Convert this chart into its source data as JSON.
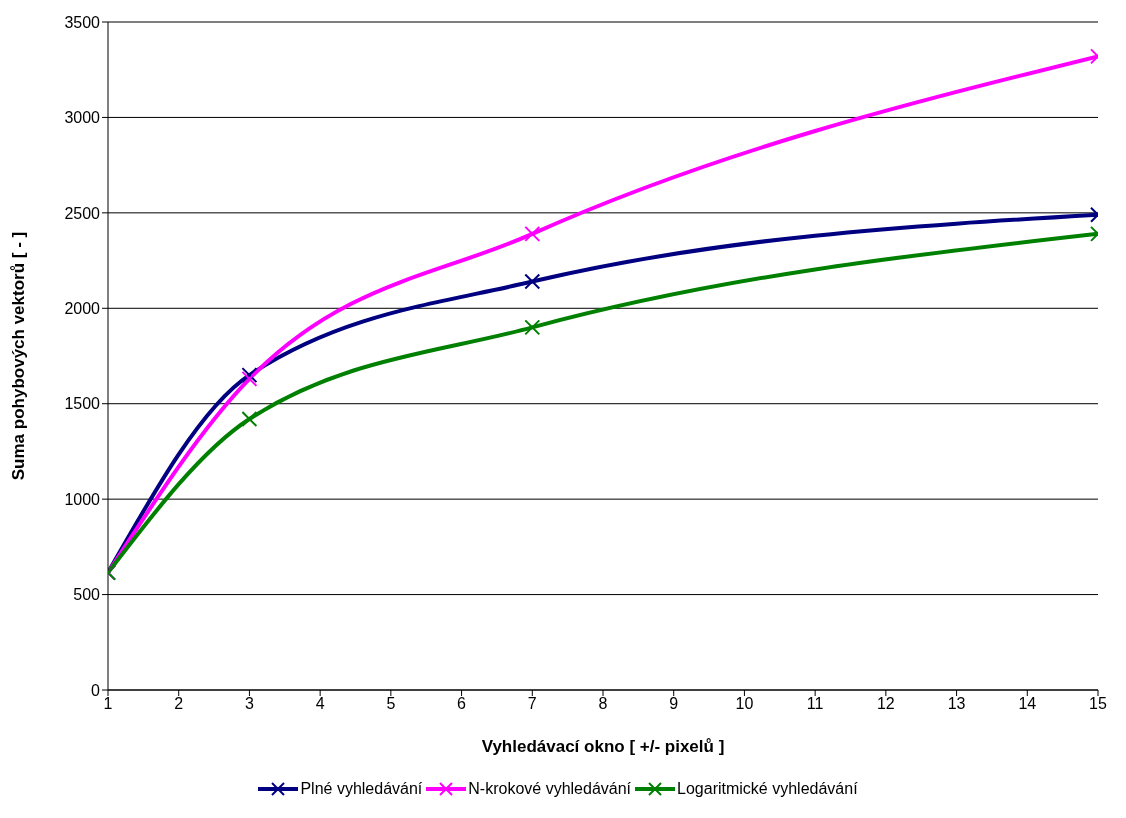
{
  "chart_data": {
    "type": "line",
    "xlabel": "Vyhledávací okno [ +/- pixelů ]",
    "ylabel": "Suma pohybových vektorů [ - ]",
    "x": [
      1,
      3,
      7,
      15
    ],
    "series": [
      {
        "name": "Plné vyhledávání",
        "color": "#000080",
        "values": [
          615,
          1650,
          2140,
          2490
        ]
      },
      {
        "name": "N-krokové vyhledávání",
        "color": "#ff00ff",
        "values": [
          615,
          1630,
          2390,
          3320
        ]
      },
      {
        "name": "Logaritmické vyhledávání",
        "color": "#008000",
        "values": [
          615,
          1420,
          1900,
          2390
        ]
      }
    ],
    "xlim": [
      1,
      15
    ],
    "xticks": [
      1,
      2,
      3,
      4,
      5,
      6,
      7,
      8,
      9,
      10,
      11,
      12,
      13,
      14,
      15
    ],
    "ylim": [
      0,
      3500
    ],
    "yticks": [
      0,
      500,
      1000,
      1500,
      2000,
      2500,
      3000,
      3500
    ],
    "grid": "y",
    "legend": "bottom",
    "marker": "cross",
    "line_style": "solid"
  }
}
